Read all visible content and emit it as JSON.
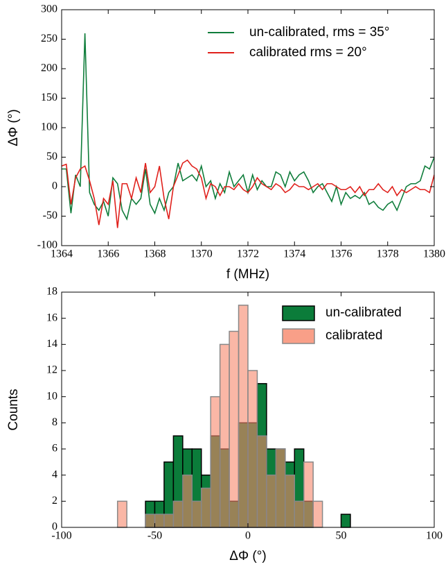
{
  "chart_data": [
    {
      "type": "line",
      "xlabel": "f (MHz)",
      "ylabel": "ΔΦ (°)",
      "x": [
        1364,
        1364.2,
        1364.4,
        1364.6,
        1364.8,
        1365,
        1365.2,
        1365.4,
        1365.6,
        1365.8,
        1366,
        1366.2,
        1366.4,
        1366.6,
        1366.8,
        1367,
        1367.2,
        1367.4,
        1367.6,
        1367.8,
        1368,
        1368.2,
        1368.4,
        1368.6,
        1368.8,
        1369,
        1369.2,
        1369.4,
        1369.6,
        1369.8,
        1370,
        1370.2,
        1370.4,
        1370.6,
        1370.8,
        1371,
        1371.2,
        1371.4,
        1371.6,
        1371.8,
        1372,
        1372.2,
        1372.4,
        1372.6,
        1372.8,
        1373,
        1373.2,
        1373.4,
        1373.6,
        1373.8,
        1374,
        1374.2,
        1374.4,
        1374.6,
        1374.8,
        1375,
        1375.2,
        1375.4,
        1375.6,
        1375.8,
        1376,
        1376.2,
        1376.4,
        1376.6,
        1376.8,
        1377,
        1377.2,
        1377.4,
        1377.6,
        1377.8,
        1378,
        1378.2,
        1378.4,
        1378.6,
        1378.8,
        1379,
        1379.2,
        1379.4,
        1379.6,
        1379.8,
        1380
      ],
      "series": [
        {
          "name": "un-calibrated, rms = 35°",
          "color": "#0f7d3b",
          "values": [
            30,
            30,
            -45,
            20,
            0,
            260,
            -10,
            -30,
            -40,
            -25,
            -50,
            15,
            5,
            -40,
            -55,
            -20,
            -30,
            -20,
            30,
            -30,
            -45,
            -20,
            -40,
            -10,
            0,
            40,
            10,
            15,
            20,
            10,
            35,
            0,
            10,
            -20,
            5,
            -10,
            25,
            0,
            10,
            20,
            -10,
            20,
            -5,
            10,
            0,
            0,
            25,
            20,
            0,
            25,
            10,
            20,
            25,
            10,
            -10,
            0,
            5,
            -10,
            -25,
            0,
            -30,
            -10,
            -20,
            -15,
            -20,
            -10,
            -30,
            -25,
            -35,
            -40,
            -30,
            -25,
            -40,
            -20,
            0,
            5,
            5,
            10,
            35,
            30,
            50
          ]
        },
        {
          "name": "calibrated rms = 20°",
          "color": "#e0201b",
          "values": [
            35,
            38,
            -30,
            15,
            30,
            35,
            10,
            -20,
            -65,
            -20,
            -30,
            10,
            -70,
            5,
            5,
            -20,
            15,
            -10,
            40,
            -10,
            0,
            35,
            -20,
            -55,
            0,
            20,
            40,
            45,
            35,
            30,
            15,
            -20,
            5,
            0,
            -15,
            0,
            0,
            -5,
            5,
            -5,
            -10,
            0,
            15,
            5,
            0,
            -5,
            5,
            0,
            -10,
            -5,
            5,
            0,
            0,
            -5,
            0,
            5,
            -5,
            5,
            5,
            0,
            -5,
            -5,
            0,
            -10,
            0,
            -15,
            -5,
            -5,
            5,
            -5,
            -10,
            0,
            -15,
            -5,
            -10,
            -5,
            0,
            -5,
            -5,
            -10,
            20
          ]
        }
      ],
      "xlim": [
        1364,
        1380
      ],
      "xticks": [
        1364,
        1366,
        1368,
        1370,
        1372,
        1374,
        1376,
        1378,
        1380
      ],
      "ylim": [
        -100,
        300
      ],
      "yticks": [
        -100,
        -50,
        0,
        50,
        100,
        150,
        200,
        250,
        300
      ],
      "legend": "upper right"
    },
    {
      "type": "histogram",
      "xlabel": "ΔΦ (°)",
      "ylabel": "Counts",
      "bins": [
        -70,
        -65,
        -60,
        -55,
        -50,
        -45,
        -40,
        -35,
        -30,
        -25,
        -20,
        -15,
        -10,
        -5,
        0,
        5,
        10,
        15,
        20,
        25,
        30,
        35,
        40,
        45,
        50,
        55
      ],
      "series": [
        {
          "name": "un-calibrated",
          "color": "#0b7c3a",
          "values": [
            0,
            0,
            0,
            2,
            2,
            5,
            7,
            6,
            6,
            4,
            7,
            6,
            2,
            8,
            8,
            11,
            6,
            6,
            5,
            6,
            2,
            0,
            0,
            0,
            1
          ]
        },
        {
          "name": "calibrated",
          "color": "#f7876a",
          "values": [
            2,
            0,
            0,
            1,
            1,
            1,
            2,
            4,
            2,
            3,
            10,
            14,
            15,
            17,
            12,
            7,
            4,
            6,
            4,
            2,
            5,
            2,
            0,
            0,
            0
          ]
        }
      ],
      "xlim": [
        -100,
        100
      ],
      "xticks": [
        -100,
        -50,
        0,
        50,
        100
      ],
      "ylim": [
        0,
        18
      ],
      "yticks": [
        0,
        2,
        4,
        6,
        8,
        10,
        12,
        14,
        16,
        18
      ],
      "legend": "upper right"
    }
  ]
}
